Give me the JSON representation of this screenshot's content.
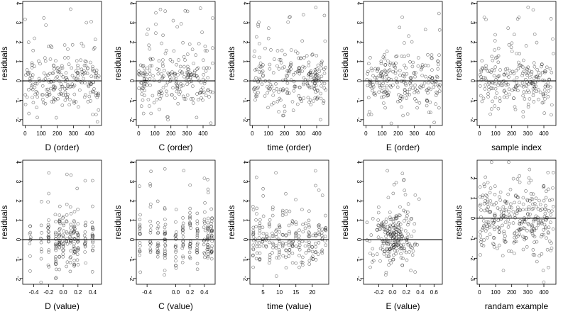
{
  "figure": {
    "ylabel": "residuals"
  },
  "chart_data": [
    {
      "type": "scatter",
      "xlabel": "D (order)",
      "ylabel": "residuals",
      "ylim": [
        -2.3,
        4.1
      ],
      "xlim": [
        -15,
        475
      ],
      "xticks": [
        0,
        100,
        200,
        300,
        400
      ],
      "xtick_labels": [
        "0",
        "100",
        "200",
        "300",
        "400"
      ],
      "yticks": [
        -2,
        -1,
        0,
        1,
        2,
        3,
        4
      ],
      "ytick_labels": [
        "-2",
        "-1",
        "0",
        "1",
        "2",
        "3",
        "4"
      ],
      "hline": 0,
      "points": {
        "generator": "order",
        "n": 230,
        "seed": 11
      }
    },
    {
      "type": "scatter",
      "xlabel": "C (order)",
      "ylabel": "residuals",
      "ylim": [
        -2.3,
        4.1
      ],
      "xlim": [
        -15,
        475
      ],
      "xticks": [
        0,
        100,
        200,
        300,
        400
      ],
      "xtick_labels": [
        "0",
        "100",
        "200",
        "300",
        "400"
      ],
      "yticks": [
        -2,
        -1,
        0,
        1,
        2,
        3,
        4
      ],
      "ytick_labels": [
        "-2",
        "-1",
        "0",
        "1",
        "2",
        "3",
        "4"
      ],
      "hline": 0,
      "points": {
        "generator": "order",
        "n": 230,
        "seed": 23
      }
    },
    {
      "type": "scatter",
      "xlabel": "time (order)",
      "ylabel": "residuals",
      "ylim": [
        -2.3,
        4.1
      ],
      "xlim": [
        -15,
        475
      ],
      "xticks": [
        0,
        100,
        200,
        300,
        400
      ],
      "xtick_labels": [
        "0",
        "100",
        "200",
        "300",
        "400"
      ],
      "yticks": [
        -2,
        -1,
        0,
        1,
        2,
        3,
        4
      ],
      "ytick_labels": [
        "-2",
        "-1",
        "0",
        "1",
        "2",
        "3",
        "4"
      ],
      "hline": 0,
      "points": {
        "generator": "order",
        "n": 230,
        "seed": 37
      }
    },
    {
      "type": "scatter",
      "xlabel": "E (order)",
      "ylabel": "residuals",
      "ylim": [
        -2.3,
        4.1
      ],
      "xlim": [
        -15,
        475
      ],
      "xticks": [
        0,
        100,
        200,
        300,
        400
      ],
      "xtick_labels": [
        "0",
        "100",
        "200",
        "300",
        "400"
      ],
      "yticks": [
        -2,
        -1,
        0,
        1,
        2,
        3,
        4
      ],
      "ytick_labels": [
        "-2",
        "-1",
        "0",
        "1",
        "2",
        "3",
        "4"
      ],
      "hline": 0,
      "points": {
        "generator": "order",
        "n": 230,
        "seed": 41
      }
    },
    {
      "type": "scatter",
      "xlabel": "sample index",
      "ylabel": "residuals",
      "ylim": [
        -2.3,
        4.1
      ],
      "xlim": [
        -15,
        475
      ],
      "xticks": [
        0,
        100,
        200,
        300,
        400
      ],
      "xtick_labels": [
        "0",
        "100",
        "200",
        "300",
        "400"
      ],
      "yticks": [
        -2,
        -1,
        0,
        1,
        2,
        3,
        4
      ],
      "ytick_labels": [
        "-2",
        "-1",
        "0",
        "1",
        "2",
        "3",
        "4"
      ],
      "hline": 0,
      "points": {
        "generator": "order",
        "n": 230,
        "seed": 53
      }
    },
    {
      "type": "scatter",
      "xlabel": "D (value)",
      "ylabel": "residuals",
      "ylim": [
        -2.3,
        4.1
      ],
      "xlim": [
        -0.55,
        0.52
      ],
      "xticks": [
        -0.4,
        -0.2,
        0.0,
        0.2,
        0.4
      ],
      "xtick_labels": [
        "-0.4",
        "-0.2",
        "0.0",
        "0.2",
        "0.4"
      ],
      "yticks": [
        -2,
        -1,
        0,
        1,
        2,
        3,
        4
      ],
      "ytick_labels": [
        "-2",
        "-1",
        "0",
        "1",
        "2",
        "3",
        "4"
      ],
      "hline": 0,
      "points": {
        "generator": "clustered",
        "n": 220,
        "seed": 61,
        "centers": [
          -0.45,
          -0.3,
          -0.2,
          -0.1,
          -0.05,
          0.0,
          0.05,
          0.1,
          0.15,
          0.2,
          0.3,
          0.4
        ]
      }
    },
    {
      "type": "scatter",
      "xlabel": "C (value)",
      "ylabel": "residuals",
      "ylim": [
        -2.3,
        4.1
      ],
      "xlim": [
        -0.55,
        0.55
      ],
      "xticks": [
        -0.4,
        0.0,
        0.2,
        0.4
      ],
      "xtick_labels": [
        "-0.4",
        "0.0",
        "0.2",
        "0.4"
      ],
      "yticks": [
        -2,
        -1,
        0,
        1,
        2,
        3,
        4
      ],
      "ytick_labels": [
        "-2",
        "-1",
        "0",
        "1",
        "2",
        "3",
        "4"
      ],
      "hline": 0,
      "points": {
        "generator": "clustered",
        "n": 220,
        "seed": 71,
        "centers": [
          -0.5,
          -0.35,
          -0.25,
          -0.15,
          0.0,
          0.1,
          0.2,
          0.3,
          0.4,
          0.45,
          0.5
        ]
      }
    },
    {
      "type": "scatter",
      "xlabel": "time (value)",
      "ylabel": "residuals",
      "ylim": [
        -2.3,
        4.1
      ],
      "xlim": [
        1,
        25
      ],
      "xticks": [
        5,
        10,
        15,
        20
      ],
      "xtick_labels": [
        "5",
        "10",
        "15",
        "20"
      ],
      "yticks": [
        -2,
        -1,
        0,
        1,
        2,
        3,
        4
      ],
      "ytick_labels": [
        "-2",
        "-1",
        "0",
        "1",
        "2",
        "3",
        "4"
      ],
      "hline": 0,
      "points": {
        "generator": "clustered",
        "n": 230,
        "seed": 83,
        "centers": [
          2,
          3,
          4,
          5,
          6,
          7,
          8,
          9,
          10,
          11,
          12,
          13,
          14,
          15,
          16,
          17,
          18,
          19,
          20,
          21,
          22,
          23,
          24
        ]
      }
    },
    {
      "type": "scatter",
      "xlabel": "E (value)",
      "ylabel": "residuals",
      "ylim": [
        -2.3,
        4.1
      ],
      "xlim": [
        -0.42,
        0.72
      ],
      "xticks": [
        -0.2,
        0.0,
        0.2,
        0.4,
        0.6
      ],
      "xtick_labels": [
        "-0.2",
        "0.0",
        "0.2",
        "0.4",
        "0.6"
      ],
      "yticks": [
        -2,
        -1,
        0,
        1,
        2,
        3,
        4
      ],
      "ytick_labels": [
        "-2",
        "-1",
        "0",
        "1",
        "2",
        "3",
        "4"
      ],
      "hline": 0,
      "points": {
        "generator": "blob",
        "n": 230,
        "seed": 97,
        "xmean": 0.0,
        "xsd": 0.16
      }
    },
    {
      "type": "scatter",
      "xlabel": "randam example",
      "ylabel": "residuals",
      "ylim": [
        -3.3,
        2.9
      ],
      "xlim": [
        -15,
        475
      ],
      "xticks": [
        0,
        100,
        200,
        300,
        400
      ],
      "xtick_labels": [
        "0",
        "100",
        "200",
        "300",
        "400"
      ],
      "yticks": [
        -3,
        -2,
        -1,
        0,
        1,
        2
      ],
      "ytick_labels": [
        "-3",
        "-2",
        "-1",
        "0",
        "1",
        "2"
      ],
      "hline": 0,
      "points": {
        "generator": "normal",
        "n": 300,
        "seed": 101
      }
    }
  ]
}
